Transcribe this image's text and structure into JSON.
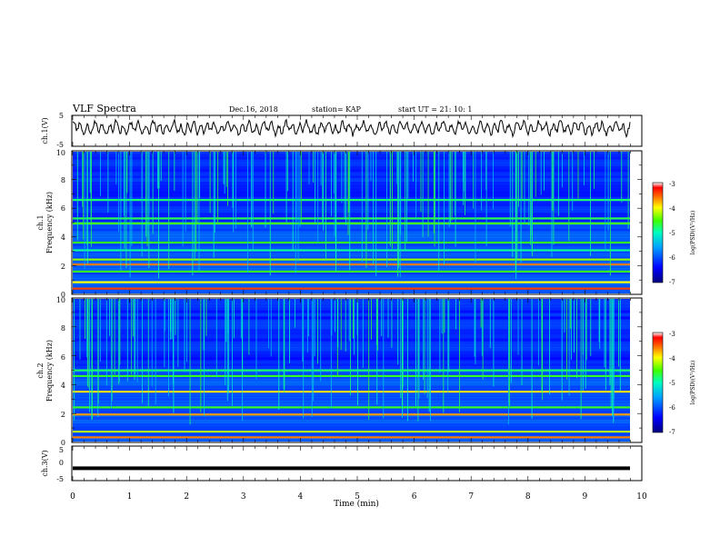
{
  "header": {
    "title": "VLF Spectra",
    "date": "Dec.16, 2018",
    "station": "station= KAP",
    "start_ut": "start  UT =   21: 10: 1"
  },
  "chart_data": [
    {
      "type": "line",
      "ylabel": "ch.1(V)",
      "ylim": [
        -5,
        5
      ],
      "y_ticks": [
        "5",
        "-5"
      ],
      "xlim": [
        0,
        10
      ],
      "x_end_of_data": 9.8,
      "description_of_series": "noisy waveform oscillating roughly between -2 and +4 V"
    },
    {
      "type": "heatmap",
      "ylabel": "ch.1\nFrequency  (kHz)",
      "ylabel_lines": [
        "ch.1",
        "Frequency  (kHz)"
      ],
      "ylim": [
        0,
        10
      ],
      "y_ticks": [
        "0",
        "2",
        "4",
        "6",
        "8",
        "10"
      ],
      "xlim": [
        0,
        10
      ],
      "colorbar": {
        "label": "log(PSD)(V²/Hz)",
        "range": [
          -7,
          -3
        ],
        "ticks": [
          "-3",
          "-4",
          "-5",
          "-6",
          "-7"
        ]
      },
      "bands": [
        {
          "f": 0.35,
          "v": -3.4
        },
        {
          "f": 0.8,
          "v": -4.0
        },
        {
          "f": 1.55,
          "v": -4.6
        },
        {
          "f": 2.05,
          "v": -3.6
        },
        {
          "f": 2.4,
          "v": -4.3
        },
        {
          "f": 3.05,
          "v": -4.9
        },
        {
          "f": 3.6,
          "v": -4.6
        },
        {
          "f": 4.95,
          "v": -4.5
        },
        {
          "f": 5.3,
          "v": -4.7
        },
        {
          "f": 6.6,
          "v": -4.8
        }
      ]
    },
    {
      "type": "heatmap",
      "ylabel_lines": [
        "ch.2",
        "Frequency  (kHz)"
      ],
      "ylim": [
        0,
        10
      ],
      "y_ticks": [
        "0",
        "2",
        "4",
        "6",
        "8",
        "10"
      ],
      "xlim": [
        0,
        10
      ],
      "colorbar": {
        "label": "log(PSD)(V²/Hz)",
        "range": [
          -7,
          -3
        ],
        "ticks": [
          "-3",
          "-4",
          "-5",
          "-6",
          "-7"
        ]
      },
      "bands": [
        {
          "f": 0.3,
          "v": -3.6
        },
        {
          "f": 0.7,
          "v": -4.2
        },
        {
          "f": 1.9,
          "v": -3.7
        },
        {
          "f": 2.4,
          "v": -4.6
        },
        {
          "f": 3.5,
          "v": -3.9
        },
        {
          "f": 4.6,
          "v": -4.6
        },
        {
          "f": 5.0,
          "v": -4.8
        }
      ]
    },
    {
      "type": "line",
      "ylabel": "ch.3(V)",
      "ylim": [
        -5,
        5
      ],
      "y_ticks": [
        "5",
        "0",
        "-5"
      ],
      "xlim": [
        0,
        10
      ],
      "x_end_of_data": 9.8,
      "values_constant": -1.5
    }
  ],
  "x_axis": {
    "label": "Time  (min)",
    "ticks": [
      "0",
      "1",
      "2",
      "3",
      "4",
      "5",
      "6",
      "7",
      "8",
      "9",
      "10"
    ]
  }
}
